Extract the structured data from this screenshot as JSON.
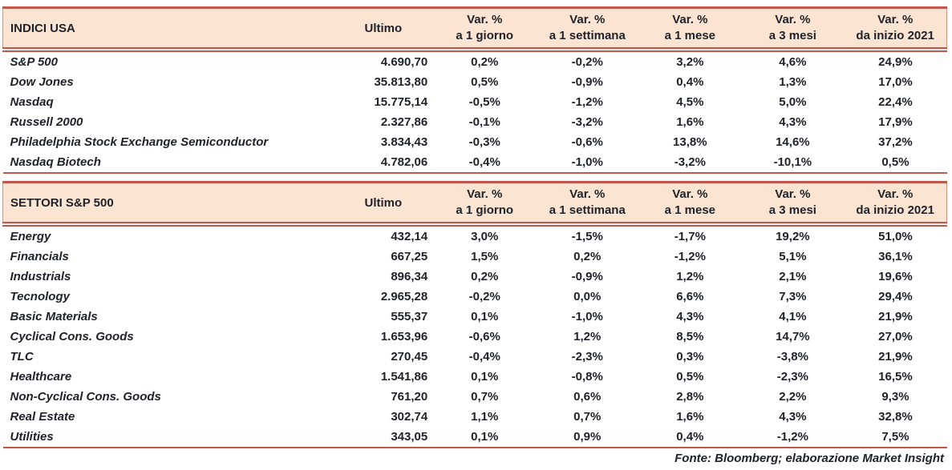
{
  "colors": {
    "header_bg": "#FBE5D2",
    "border_red": "#C4574C",
    "text": "#20232B"
  },
  "header": {
    "ultimo": "Ultimo",
    "var_line1": "Var. %",
    "var_line2": [
      "a 1 giorno",
      "a 1 settimana",
      "a 1 mese",
      "a 3 mesi",
      "da inizio 2021"
    ]
  },
  "chart_data": [
    {
      "type": "table",
      "title": "INDICI USA",
      "columns": [
        "INDICI USA",
        "Ultimo",
        "Var. % a 1 giorno",
        "Var. % a 1 settimana",
        "Var. % a 1 mese",
        "Var. % a 3 mesi",
        "Var. % da inizio 2021"
      ],
      "rows": [
        [
          "S&P 500",
          "4.690,70",
          "0,2%",
          "-0,2%",
          "3,2%",
          "4,6%",
          "24,9%"
        ],
        [
          "Dow Jones",
          "35.813,80",
          "0,5%",
          "-0,9%",
          "0,4%",
          "1,3%",
          "17,0%"
        ],
        [
          "Nasdaq",
          "15.775,14",
          "-0,5%",
          "-1,2%",
          "4,5%",
          "5,0%",
          "22,4%"
        ],
        [
          "Russell 2000",
          "2.327,86",
          "-0,1%",
          "-3,2%",
          "1,6%",
          "4,3%",
          "17,9%"
        ],
        [
          "Philadelphia Stock Exchange Semiconductor",
          "3.834,43",
          "-0,3%",
          "-0,6%",
          "13,8%",
          "14,6%",
          "37,2%"
        ],
        [
          "Nasdaq Biotech",
          "4.782,06",
          "-0,4%",
          "-1,0%",
          "-3,2%",
          "-10,1%",
          "0,5%"
        ]
      ]
    },
    {
      "type": "table",
      "title": "SETTORI S&P 500",
      "columns": [
        "SETTORI S&P 500",
        "Ultimo",
        "Var. % a 1 giorno",
        "Var. % a 1 settimana",
        "Var. % a 1 mese",
        "Var. % a 3 mesi",
        "Var. % da inizio 2021"
      ],
      "rows": [
        [
          "Energy",
          "432,14",
          "3,0%",
          "-1,5%",
          "-1,7%",
          "19,2%",
          "51,0%"
        ],
        [
          "Financials",
          "667,25",
          "1,5%",
          "0,2%",
          "-1,2%",
          "5,1%",
          "36,1%"
        ],
        [
          "Industrials",
          "896,34",
          "0,2%",
          "-0,9%",
          "1,2%",
          "2,1%",
          "19,6%"
        ],
        [
          "Tecnology",
          "2.965,28",
          "-0,2%",
          "0,0%",
          "6,6%",
          "7,3%",
          "29,4%"
        ],
        [
          "Basic Materials",
          "555,37",
          "0,1%",
          "-1,0%",
          "4,3%",
          "4,1%",
          "21,9%"
        ],
        [
          "Cyclical Cons. Goods",
          "1.653,96",
          "-0,6%",
          "1,2%",
          "8,5%",
          "14,7%",
          "27,0%"
        ],
        [
          "TLC",
          "270,45",
          "-0,4%",
          "-2,3%",
          "0,3%",
          "-3,8%",
          "21,9%"
        ],
        [
          "Healthcare",
          "1.541,86",
          "0,1%",
          "-0,8%",
          "0,5%",
          "-2,3%",
          "16,5%"
        ],
        [
          "Non-Cyclical Cons. Goods",
          "761,20",
          "0,7%",
          "0,6%",
          "2,8%",
          "2,2%",
          "9,3%"
        ],
        [
          "Real Estate",
          "302,74",
          "1,1%",
          "0,7%",
          "1,6%",
          "4,3%",
          "32,8%"
        ],
        [
          "Utilities",
          "343,05",
          "0,1%",
          "0,9%",
          "0,4%",
          "-1,2%",
          "7,5%"
        ]
      ]
    }
  ],
  "footer": {
    "source": "Fonte: Bloomberg; elaborazione Market Insight"
  }
}
